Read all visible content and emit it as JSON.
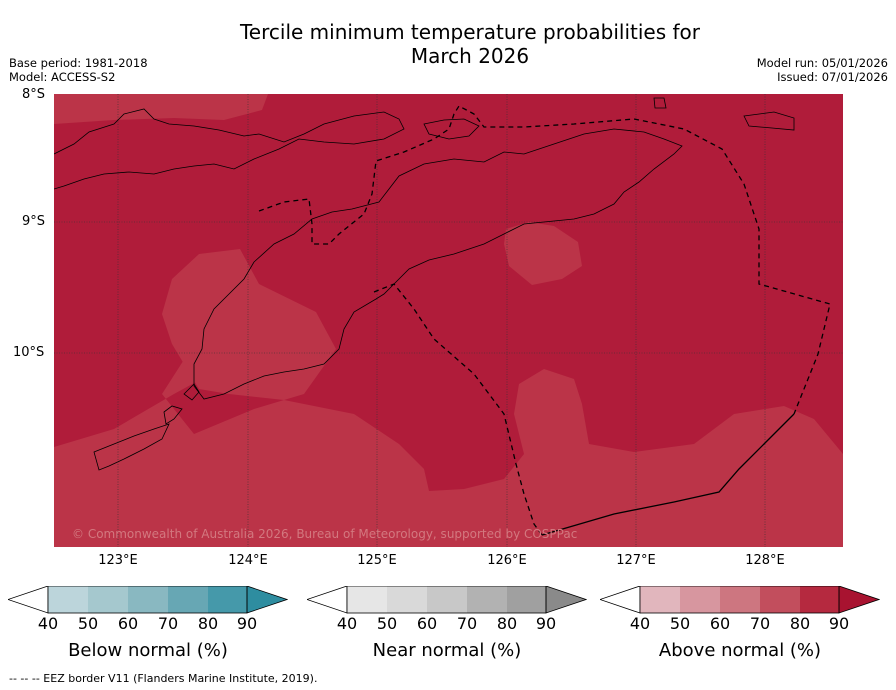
{
  "title_line1": "Tercile minimum temperature probabilities for",
  "title_line2": "March 2026",
  "meta_left": {
    "base_period": "Base period: 1981-2018",
    "model": "Model: ACCESS-S2"
  },
  "meta_right": {
    "model_run": "Model run: 05/01/2026",
    "issued": "Issued: 07/01/2026"
  },
  "lat_labels": [
    "8°S",
    "9°S",
    "10°S"
  ],
  "lon_labels": [
    "123°E",
    "124°E",
    "125°E",
    "126°E",
    "127°E",
    "128°E"
  ],
  "copyright": "© Commonwealth of Australia 2026, Bureau of Meteorology, supported by COSPPac",
  "colorbars": {
    "below": {
      "title": "Below normal (%)",
      "ticks": [
        "40",
        "50",
        "60",
        "70",
        "80",
        "90"
      ],
      "colors": [
        "#ffffff",
        "#bcd5db",
        "#a5c8ce",
        "#89b8c1",
        "#67a7b4",
        "#4599aa",
        "#2e8da0"
      ]
    },
    "near": {
      "title": "Near normal (%)",
      "ticks": [
        "40",
        "50",
        "60",
        "70",
        "80",
        "90"
      ],
      "colors": [
        "#ffffff",
        "#e6e6e6",
        "#d9d9d9",
        "#c8c8c8",
        "#b2b2b2",
        "#a0a0a0",
        "#8a8a8a"
      ]
    },
    "above": {
      "title": "Above normal (%)",
      "ticks": [
        "40",
        "50",
        "60",
        "70",
        "80",
        "90"
      ],
      "colors": [
        "#ffffff",
        "#e1b6bd",
        "#d7969f",
        "#cd7680",
        "#c24e5d",
        "#b5293f",
        "#a81330"
      ]
    }
  },
  "map_colors": {
    "level_90": "#b01c3a",
    "level_80": "#bb3448"
  },
  "footnote": "--  --  -- EEZ border V11 (Flanders Marine Institute, 2019)."
}
